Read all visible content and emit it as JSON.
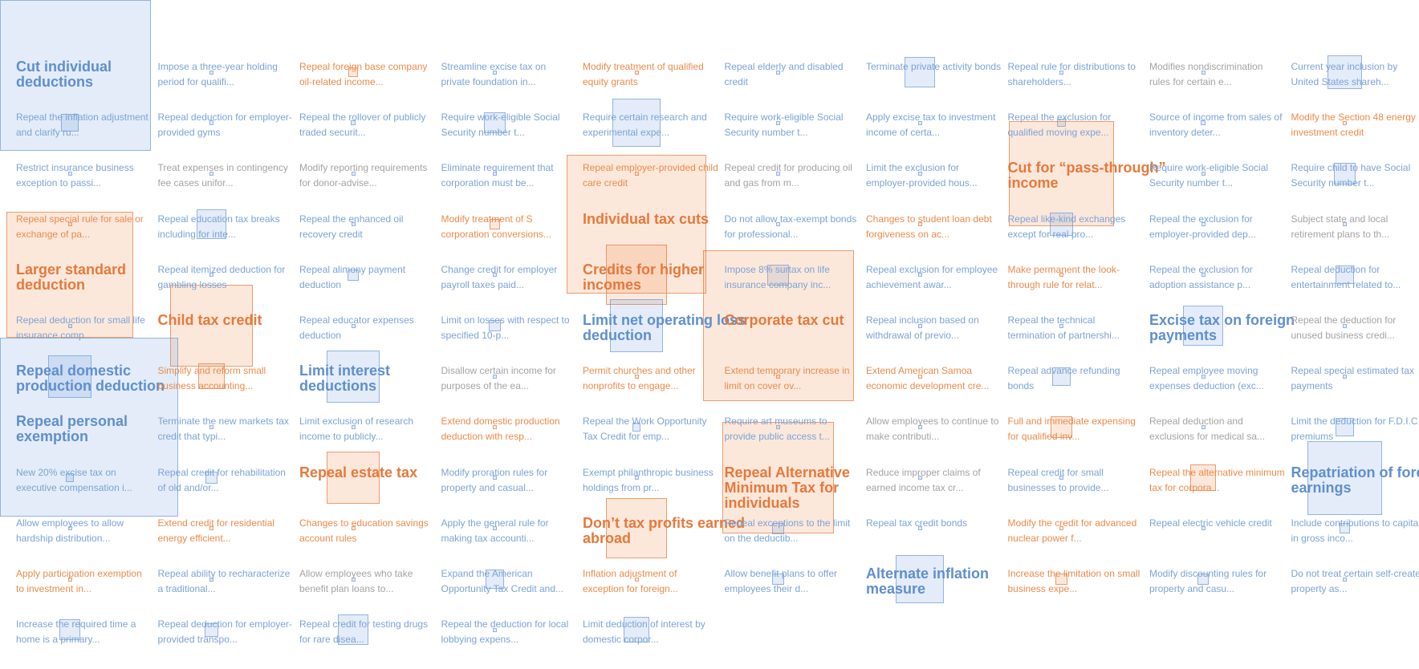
{
  "chart_data": {
    "type": "grid of proportional squares",
    "colors": {
      "gain": "#5f8fcd",
      "cost": "#e5793b",
      "neutral": "#a3a3a3"
    },
    "items": [
      {
        "label": "Cut individual deductions",
        "group": "blue",
        "big": true,
        "value": 1.0
      },
      {
        "label": "Impose a three-year holding period for qualifi...",
        "group": "blue",
        "value": 0.0
      },
      {
        "label": "Repeal foreign base company oil-related income...",
        "group": "orange",
        "value": 0.004
      },
      {
        "label": "Streamline excise tax on private foundation in...",
        "group": "blue",
        "value": 0.0
      },
      {
        "label": "Modify treatment of qualified equity grants",
        "group": "orange",
        "value": 0.0
      },
      {
        "label": "Repeal elderly and disabled credit",
        "group": "blue",
        "value": 0.0
      },
      {
        "label": "Terminate private activity bonds",
        "group": "blue",
        "value": 0.04
      },
      {
        "label": "Repeal rule for distributions to shareholders...",
        "group": "blue",
        "value": 0.0
      },
      {
        "label": "Modifies nondiscrimination rules for certain e...",
        "group": "gray",
        "value": 0.0
      },
      {
        "label": "Current year inclusion by United States shareh...",
        "group": "blue",
        "value": 0.05
      },
      {
        "label": "Repeal the inflation adjustment and clarify ru...",
        "group": "blue",
        "value": 0.013
      },
      {
        "label": "Repeal deduction for employer-provided gyms",
        "group": "blue",
        "value": 0.001
      },
      {
        "label": "Repeal the rollover of publicly traded securit...",
        "group": "blue",
        "value": 0.001
      },
      {
        "label": "Require work-eligible Social Security number t...",
        "group": "blue",
        "value": 0.02
      },
      {
        "label": "Require certain research and experimental expe...",
        "group": "blue",
        "value": 0.1
      },
      {
        "label": "Require work-eligible Social Security number t...",
        "group": "blue",
        "value": 0.0
      },
      {
        "label": "Apply excise tax to investment income of certa...",
        "group": "blue",
        "value": 0.0
      },
      {
        "label": "Repeal the exclusion for qualified moving expe...",
        "group": "blue",
        "value": 0.003
      },
      {
        "label": "Source of income from sales of inventory deter...",
        "group": "blue",
        "value": 0.001
      },
      {
        "label": "Modify the Section 48 energy investment credit",
        "group": "orange",
        "value": 0.0
      },
      {
        "label": "Restrict insurance business exception to passi...",
        "group": "blue",
        "value": 0.0
      },
      {
        "label": "Treat expenses in contingency fee cases unifor...",
        "group": "gray",
        "value": 0.0
      },
      {
        "label": "Modify reporting requirements for donor-advise...",
        "group": "gray",
        "value": 0.0
      },
      {
        "label": "Eliminate requirement that corporation must be...",
        "group": "blue",
        "value": 0.0
      },
      {
        "label": "Repeal employer-provided child care credit",
        "group": "orange",
        "value": 0.0
      },
      {
        "label": "Repeal credit for producing oil and gas from m...",
        "group": "gray",
        "value": 0.0
      },
      {
        "label": "Limit the exclusion for employer-provided hous...",
        "group": "blue",
        "value": 0.0
      },
      {
        "label": "Cut for “pass-through” income",
        "group": "orange",
        "big": true,
        "value": 0.48
      },
      {
        "label": "Require work-eligible Social Security number t...",
        "group": "blue",
        "value": 0.0
      },
      {
        "label": "Require child to have Social Security number t...",
        "group": "blue",
        "value": 0.02
      },
      {
        "label": "Repeal special rule for sale or exchange of pa...",
        "group": "orange",
        "value": 0.0
      },
      {
        "label": "Repeal education tax breaks including for inte...",
        "group": "blue",
        "value": 0.04
      },
      {
        "label": "Repeal the enhanced oil recovery credit",
        "group": "blue",
        "value": 0.0
      },
      {
        "label": "Modify treatment of S corporation conversions...",
        "group": "orange",
        "value": 0.005
      },
      {
        "label": "Individual tax cuts",
        "group": "orange",
        "big": true,
        "value": 0.85
      },
      {
        "label": "Do not allow tax-exempt bonds for professional...",
        "group": "blue",
        "value": 0.0
      },
      {
        "label": "Changes to student loan debt forgiveness on ac...",
        "group": "orange",
        "value": 0.0
      },
      {
        "label": "Repeal like-kind exchanges except for real pro...",
        "group": "blue",
        "value": 0.025
      },
      {
        "label": "Repeal the exclusion for employer-provided dep...",
        "group": "blue",
        "value": 0.0
      },
      {
        "label": "Subject state and local retirement plans to th...",
        "group": "gray",
        "value": 0.0
      },
      {
        "label": "Larger standard deduction",
        "group": "orange",
        "big": true,
        "value": 0.7
      },
      {
        "label": "Repeal itemized deduction for gambling losses",
        "group": "blue",
        "value": 0.0
      },
      {
        "label": "Repeal alimony payment deduction",
        "group": "blue",
        "value": 0.006
      },
      {
        "label": "Change credit for employer payroll taxes paid...",
        "group": "blue",
        "value": 0.0
      },
      {
        "label": "Credits for higher incomes",
        "group": "orange",
        "big": true,
        "value": 0.16
      },
      {
        "label": "Impose 8% surtax on life insurance company inc...",
        "group": "blue",
        "value": 0.02
      },
      {
        "label": "Repeal exclusion for employee achievement awar...",
        "group": "blue",
        "value": 0.0
      },
      {
        "label": "Make permanent the look-through rule for relat...",
        "group": "orange",
        "value": 0.0
      },
      {
        "label": "Repeal the exclusion for adoption assistance p...",
        "group": "blue",
        "value": 0.0
      },
      {
        "label": "Repeal deduction for entertainment related to...",
        "group": "blue",
        "value": 0.015
      },
      {
        "label": "Repeal deduction for small life insurance comp...",
        "group": "blue",
        "value": 0.0
      },
      {
        "label": "Child tax credit",
        "group": "orange",
        "big": true,
        "value": 0.3
      },
      {
        "label": "Repeal educator expenses deduction",
        "group": "blue",
        "value": 0.0
      },
      {
        "label": "Limit on losses with respect to specified 10-p...",
        "group": "blue",
        "value": 0.006
      },
      {
        "label": "Limit net operating loss deduction",
        "group": "blue",
        "big": true,
        "value": 0.12
      },
      {
        "label": "Corporate tax cut",
        "group": "orange",
        "big": true,
        "value": 1.0
      },
      {
        "label": "Repeal inclusion based on withdrawal of previo...",
        "group": "blue",
        "value": 0.0
      },
      {
        "label": "Repeal the technical termination of partnershi...",
        "group": "blue",
        "value": 0.0
      },
      {
        "label": "Excise tax on foreign payments",
        "group": "blue",
        "big": true,
        "value": 0.07
      },
      {
        "label": "Repeal the deduction for unused business credi...",
        "group": "gray",
        "value": 0.0
      },
      {
        "label": "Repeal domestic production deduction",
        "group": "blue",
        "big": true,
        "value": 0.08
      },
      {
        "label": "Simplify and reform small business accounting...",
        "group": "orange",
        "value": 0.03
      },
      {
        "label": "Limit interest deductions",
        "group": "blue",
        "big": true,
        "value": 0.12
      },
      {
        "label": "Disallow certain income for purposes of the ea...",
        "group": "gray",
        "value": 0.0
      },
      {
        "label": "Permit churches and other nonprofits to engage...",
        "group": "orange",
        "value": 0.0
      },
      {
        "label": "Extend temporary increase in limit on cover ov...",
        "group": "orange",
        "value": 0.0
      },
      {
        "label": "Extend American Samoa economic development cre...",
        "group": "orange",
        "value": 0.0
      },
      {
        "label": "Repeal advance refunding bonds",
        "group": "blue",
        "value": 0.015
      },
      {
        "label": "Repeal employee moving expenses deduction (exc...",
        "group": "blue",
        "value": 0.0
      },
      {
        "label": "Repeal special estimated tax payments",
        "group": "blue",
        "value": 0.0
      },
      {
        "label": "Repeal personal exemption",
        "group": "blue",
        "big": true,
        "value": 1.4
      },
      {
        "label": "Terminate the new markets tax credit that typi...",
        "group": "blue",
        "value": 0.0
      },
      {
        "label": "Limit exclusion of research income to publicly...",
        "group": "blue",
        "value": 0.0
      },
      {
        "label": "Extend domestic production deduction with resp...",
        "group": "orange",
        "value": 0.0
      },
      {
        "label": "Repeal the Work Opportunity Tax Credit for emp...",
        "group": "blue",
        "value": 0.003
      },
      {
        "label": "Require art museums to provide public access t...",
        "group": "blue",
        "value": 0.0
      },
      {
        "label": "Allow employees to continue to make contributi...",
        "group": "gray",
        "value": 0.0
      },
      {
        "label": "Full and immediate expensing for qualified inv...",
        "group": "orange",
        "value": 0.02
      },
      {
        "label": "Repeal deduction and exclusions for medical sa...",
        "group": "gray",
        "value": 0.0
      },
      {
        "label": "Limit the deduction for F.D.I.C. premiums",
        "group": "blue",
        "value": 0.015
      },
      {
        "label": "New 20% excise tax on executive compensation i...",
        "group": "blue",
        "value": 0.003
      },
      {
        "label": "Repeal credit for rehabilitation of old and/or...",
        "group": "blue",
        "value": 0.006
      },
      {
        "label": "Repeal estate tax",
        "group": "orange",
        "big": true,
        "value": 0.12
      },
      {
        "label": "Modify proration rules for property and casual...",
        "group": "blue",
        "value": 0.0
      },
      {
        "label": "Exempt philanthropic business holdings from pr...",
        "group": "blue",
        "value": 0.0
      },
      {
        "label": "Repeal Alternative Minimum Tax for individuals",
        "group": "orange",
        "big": true,
        "value": 0.55
      },
      {
        "label": "Reduce improper claims of earned income tax cr...",
        "group": "gray",
        "value": 0.0
      },
      {
        "label": "Repeal credit for small businesses to provide...",
        "group": "blue",
        "value": 0.0
      },
      {
        "label": "Repeal the alternative minimum tax for corpora...",
        "group": "orange",
        "value": 0.03
      },
      {
        "label": "Repatriation of foreign earnings",
        "group": "blue",
        "big": true,
        "value": 0.24
      },
      {
        "label": "Allow employees to allow hardship distribution...",
        "group": "blue",
        "value": 0.0
      },
      {
        "label": "Extend credit for residential energy efficient...",
        "group": "orange",
        "value": 0.0
      },
      {
        "label": "Changes to education savings account rules",
        "group": "orange",
        "value": 0.0
      },
      {
        "label": "Apply the general rule for making tax accounti...",
        "group": "blue",
        "value": 0.0
      },
      {
        "label": "Don’t tax profits earned abroad",
        "group": "orange",
        "big": true,
        "value": 0.16
      },
      {
        "label": "Repeal exceptions to the limit on the deductib...",
        "group": "blue",
        "value": 0.006
      },
      {
        "label": "Repeal tax credit bonds",
        "group": "blue",
        "value": 0.0
      },
      {
        "label": "Modify the credit for advanced nuclear power f...",
        "group": "orange",
        "value": 0.0
      },
      {
        "label": "Repeal electric vehicle credit",
        "group": "blue",
        "value": 0.0
      },
      {
        "label": "Include contributions to capital in gross inco...",
        "group": "blue",
        "value": 0.005
      },
      {
        "label": "Apply participation exemption to investment in...",
        "group": "orange",
        "value": 0.0
      },
      {
        "label": "Repeal ability to recharacterize a traditional...",
        "group": "blue",
        "value": 0.0
      },
      {
        "label": "Allow employees who take benefit plan loans to...",
        "group": "gray",
        "value": 0.0
      },
      {
        "label": "Expand the American Opportunity Tax Credit and...",
        "group": "blue",
        "value": 0.015
      },
      {
        "label": "Inflation adjustment of exception for foreign...",
        "group": "orange",
        "value": 0.0
      },
      {
        "label": "Allow benefit plans to offer employees their d...",
        "group": "blue",
        "value": 0.006
      },
      {
        "label": "Alternate inflation measure",
        "group": "blue",
        "big": true,
        "value": 0.1
      },
      {
        "label": "Increase the limitation on small business expe...",
        "group": "orange",
        "value": 0.006
      },
      {
        "label": "Modify discounting rules for property and casu...",
        "group": "blue",
        "value": 0.006
      },
      {
        "label": "Do not treat certain self-created property as...",
        "group": "blue",
        "value": 0.0
      },
      {
        "label": "Increase the required time a home is a primary...",
        "group": "blue",
        "value": 0.02
      },
      {
        "label": "Repeal deduction for employer-provided transpo...",
        "group": "blue",
        "value": 0.008
      },
      {
        "label": "Repeal credit for testing drugs for rare disea...",
        "group": "blue",
        "value": 0.04
      },
      {
        "label": "Repeal the deduction for local lobbying expens...",
        "group": "blue",
        "value": 0.0
      },
      {
        "label": "Limit deduction of interest by domestic corpor...",
        "group": "blue",
        "value": 0.03
      }
    ]
  }
}
